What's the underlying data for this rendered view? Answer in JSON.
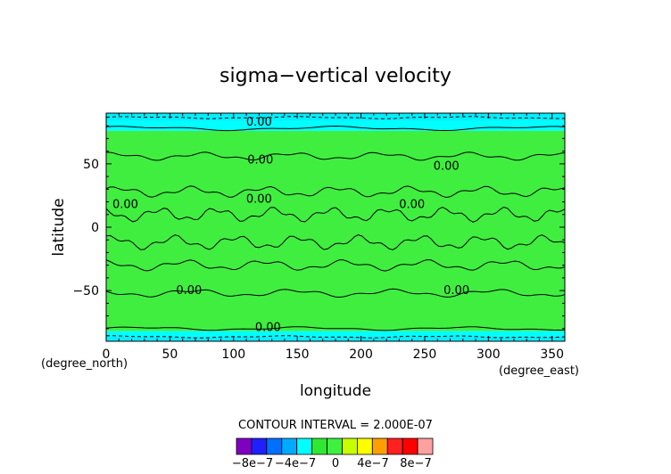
{
  "chart_data": {
    "type": "heatmap",
    "title": "sigma−vertical velocity",
    "xlabel": "longitude",
    "ylabel": "latitude",
    "x_units": "(degree_east)",
    "y_units": "(degree_north)",
    "xlim": [
      0,
      360
    ],
    "ylim": [
      -90,
      90
    ],
    "x_ticks": [
      "0",
      "50",
      "100",
      "150",
      "200",
      "250",
      "300",
      "350"
    ],
    "y_ticks": [
      "50",
      "0",
      "−50"
    ],
    "contour_interval_text": "CONTOUR INTERVAL = 2.000E-07",
    "contour_labels": [
      {
        "text": "0.00",
        "x": 120,
        "y": 83
      },
      {
        "text": "0.00",
        "x": 121,
        "y": 53
      },
      {
        "text": "0.00",
        "x": 267,
        "y": 48
      },
      {
        "text": "0.00",
        "x": 15,
        "y": 18
      },
      {
        "text": "0.00",
        "x": 120,
        "y": 22
      },
      {
        "text": "0.00",
        "x": 240,
        "y": 18
      },
      {
        "text": "0.00",
        "x": 65,
        "y": -50
      },
      {
        "text": "0.00",
        "x": 275,
        "y": -50
      },
      {
        "text": "0.00",
        "x": 127,
        "y": -79
      }
    ],
    "colorbar": {
      "colors": [
        "#8000c0",
        "#2020ff",
        "#0070ff",
        "#00aaff",
        "#00ffff",
        "#30e830",
        "#40f040",
        "#c8ff00",
        "#ffff00",
        "#ffa000",
        "#ff2020",
        "#ff0000",
        "#ffa0a0"
      ],
      "labels": [
        "−8e−7",
        "−4e−7",
        "0",
        "4e−7",
        "8e−7"
      ]
    },
    "bands": [
      {
        "lat_min": 84,
        "lat_max": 90,
        "value": "-2e-7",
        "color": "#00f0ff"
      },
      {
        "lat_min": 76,
        "lat_max": 84,
        "value": "-2e-7",
        "color": "#00ffff"
      },
      {
        "lat_min": -82,
        "lat_max": 76,
        "value": "0",
        "color": "#40ee40"
      },
      {
        "lat_min": -86,
        "lat_max": -82,
        "value": "-2e-7",
        "color": "#00ffff"
      },
      {
        "lat_min": -90,
        "lat_max": -86,
        "value": "-2e-7",
        "color": "#00f0ff"
      }
    ]
  }
}
